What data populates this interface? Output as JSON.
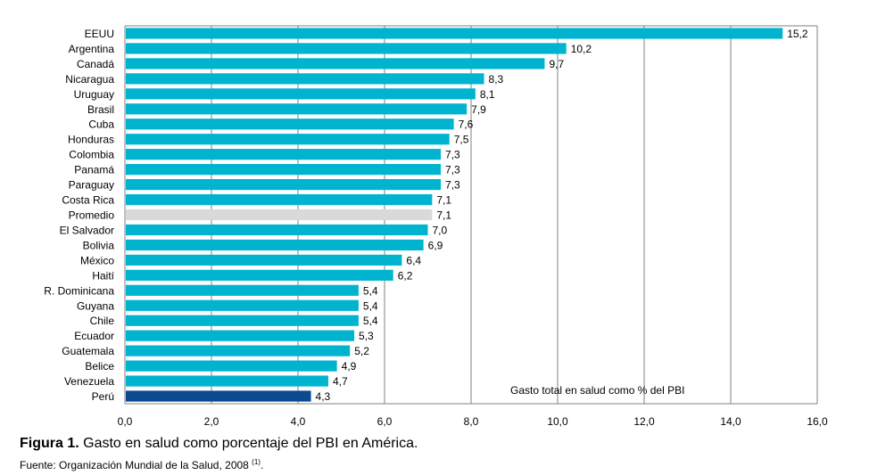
{
  "chart_data": {
    "type": "bar",
    "orientation": "horizontal",
    "categories": [
      "EEUU",
      "Argentina",
      "Canadá",
      "Nicaragua",
      "Uruguay",
      "Brasil",
      "Cuba",
      "Honduras",
      "Colombia",
      "Panamá",
      "Paraguay",
      "Costa Rica",
      "Promedio",
      "El Salvador",
      "Bolivia",
      "México",
      "Haití",
      "R. Dominicana",
      "Guyana",
      "Chile",
      "Ecuador",
      "Guatemala",
      "Belice",
      "Venezuela",
      "Perú"
    ],
    "values": [
      15.2,
      10.2,
      9.7,
      8.3,
      8.1,
      7.9,
      7.6,
      7.5,
      7.3,
      7.3,
      7.3,
      7.1,
      7.1,
      7.0,
      6.9,
      6.4,
      6.2,
      5.4,
      5.4,
      5.4,
      5.3,
      5.2,
      4.9,
      4.7,
      4.3
    ],
    "value_labels": [
      "15,2",
      "10,2",
      "9,7",
      "8,3",
      "8,1",
      "7,9",
      "7,6",
      "7,5",
      "7,3",
      "7,3",
      "7,3",
      "7,1",
      "7,1",
      "7,0",
      "6,9",
      "6,4",
      "6,2",
      "5,4",
      "5,4",
      "5,4",
      "5,3",
      "5,2",
      "4,9",
      "4,7",
      "4,3"
    ],
    "xlim": [
      0,
      16
    ],
    "x_ticks": [
      0,
      2,
      4,
      6,
      8,
      10,
      12,
      14,
      16
    ],
    "x_tick_labels": [
      "0,0",
      "2,0",
      "4,0",
      "6,0",
      "8,0",
      "10,0",
      "12,0",
      "14,0",
      "16,0"
    ],
    "grid": "vertical",
    "annotation": "Gasto total en salud  como % del PBI",
    "colors": {
      "default": "#00b4d0",
      "highlight_average": "#d9d9d9",
      "highlight_peru": "#0b4a91",
      "grid": "#808080"
    },
    "highlights": {
      "Promedio": "highlight_average",
      "Perú": "highlight_peru"
    }
  },
  "caption": {
    "label": "Figura 1.",
    "text": " Gasto en salud como porcentaje del PBI en América."
  },
  "source": {
    "text": "Fuente: Organización Mundial de la Salud, 2008 ",
    "ref": "(1)",
    "end": "."
  }
}
